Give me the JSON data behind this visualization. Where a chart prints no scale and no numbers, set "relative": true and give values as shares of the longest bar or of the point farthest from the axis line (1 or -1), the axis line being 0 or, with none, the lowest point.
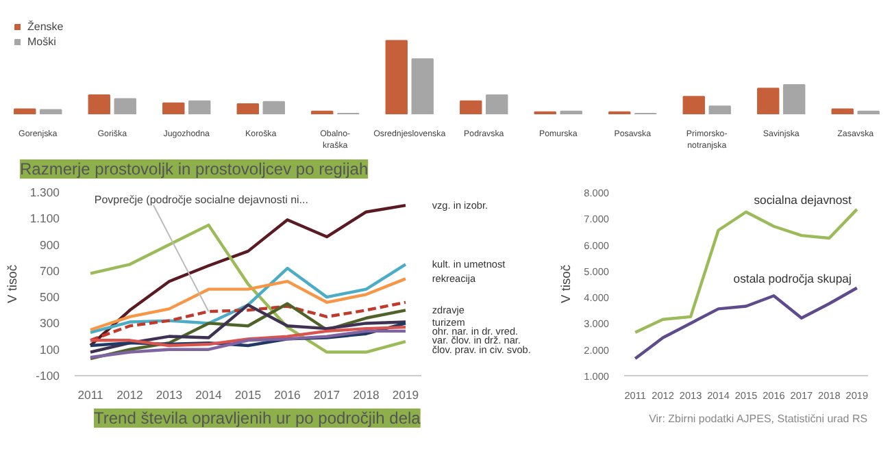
{
  "chart_data": [
    {
      "type": "bar",
      "title": "Razmerje prostovoljk in prostovoljcev po regijah",
      "relative": true,
      "legend": "top left",
      "categories": [
        "Gorenjska",
        "Goriška",
        "Jugozhodna",
        "Koroška",
        "Obalno-kraška",
        "Osrednjeslovenska",
        "Podravska",
        "Pomurska",
        "Posavska",
        "Primorsko-notranjska",
        "Savinjska",
        "Zasavska"
      ],
      "series": [
        {
          "name": "Ženske",
          "color": "#c5603a",
          "values": [
            0.07,
            0.26,
            0.15,
            0.14,
            0.04,
            1,
            0.18,
            0.03,
            0.03,
            0.24,
            0.35,
            0.07
          ]
        },
        {
          "name": "Moški",
          "color": "#a6a6a6",
          "values": [
            0.06,
            0.21,
            0.18,
            0.17,
            0.01,
            0.75,
            0.26,
            0.04,
            0.01,
            0.11,
            0.4,
            0.04
          ]
        }
      ]
    },
    {
      "type": "line",
      "title": "Trend števila opravljenih ur po področjih dela",
      "ylabel": "V tisoč",
      "x": [
        2011,
        2012,
        2013,
        2014,
        2015,
        2016,
        2017,
        2018,
        2019
      ],
      "xticks": [
        2011,
        2012,
        2013,
        2014,
        2015,
        2016,
        2017,
        2018,
        2019
      ],
      "xlim": [
        2010.6,
        2019.4
      ],
      "ylim": [
        -100,
        1300
      ],
      "yticks": [
        {
          "value": -100,
          "label": "-100"
        },
        {
          "value": 100,
          "label": "100"
        },
        {
          "value": 300,
          "label": "300"
        },
        {
          "value": 500,
          "label": "500"
        },
        {
          "value": 700,
          "label": "700"
        },
        {
          "value": 900,
          "label": "900"
        },
        {
          "value": 1100,
          "label": "1.100"
        },
        {
          "value": 1300,
          "label": "1.300"
        }
      ],
      "annotations": [
        {
          "text": "Povprečje (področje socialne dejavnosti ni...",
          "x": 2014,
          "y": 390
        }
      ],
      "series": [
        {
          "name": "vzg. in izobr.",
          "color": "#5a1a22",
          "values": [
            130,
            400,
            620,
            740,
            850,
            1090,
            960,
            1150,
            1200
          ]
        },
        {
          "name": "člov. prav. in civ. svob.",
          "color": "#9bbb59",
          "values": [
            680,
            750,
            900,
            1050,
            600,
            270,
            80,
            80,
            160
          ]
        },
        {
          "name": "kult. in umetnost",
          "color": "#4bacc6",
          "values": [
            230,
            310,
            320,
            300,
            440,
            720,
            500,
            560,
            750
          ]
        },
        {
          "name": "rekreacija",
          "color": "#f79646",
          "values": [
            250,
            350,
            410,
            560,
            560,
            620,
            460,
            520,
            640
          ]
        },
        {
          "color": "#c0392b",
          "line_style": "dashed",
          "values": [
            170,
            280,
            320,
            390,
            400,
            430,
            350,
            400,
            460
          ]
        },
        {
          "name": "zdravje",
          "color": "#4f6228",
          "values": [
            30,
            100,
            150,
            300,
            280,
            450,
            250,
            340,
            400
          ]
        },
        {
          "name": "turizem",
          "color": "#3f3151",
          "values": [
            80,
            150,
            200,
            190,
            440,
            280,
            260,
            300,
            310
          ]
        },
        {
          "color": "#1f3864",
          "values": [
            130,
            150,
            140,
            150,
            130,
            180,
            190,
            220,
            300
          ]
        },
        {
          "name": "ohr. nar. in dr. vred.",
          "color": "#d9534f",
          "values": [
            170,
            170,
            130,
            140,
            180,
            200,
            240,
            260,
            270
          ]
        },
        {
          "name": "var. člov. in drž. nar.",
          "color": "#8064a2",
          "values": [
            40,
            80,
            100,
            100,
            170,
            180,
            200,
            240,
            240
          ]
        }
      ]
    },
    {
      "type": "line",
      "ylabel": "V tisoč",
      "x": [
        2011,
        2012,
        2013,
        2014,
        2015,
        2016,
        2017,
        2018,
        2019
      ],
      "xticks": [
        2011,
        2012,
        2013,
        2014,
        2015,
        2016,
        2017,
        2018,
        2019
      ],
      "xlim": [
        2010.6,
        2019.4
      ],
      "ylim": [
        1000,
        8000
      ],
      "yticks": [
        {
          "value": 1000,
          "label": "1.000"
        },
        {
          "value": 2000,
          "label": "2.000"
        },
        {
          "value": 3000,
          "label": "3.000"
        },
        {
          "value": 4000,
          "label": "4.000"
        },
        {
          "value": 5000,
          "label": "5.000"
        },
        {
          "value": 6000,
          "label": "6.000"
        },
        {
          "value": 7000,
          "label": "7.000"
        },
        {
          "value": 8000,
          "label": "8.000"
        }
      ],
      "annotations": [
        "Vir: Zbirni podatki AJPES, Statistični urad RS"
      ],
      "series": [
        {
          "name": "socialna dejavnost",
          "color": "#9bbb59",
          "values": [
            2650,
            3150,
            3250,
            6550,
            7250,
            6700,
            6350,
            6250,
            7350
          ]
        },
        {
          "name": "ostala področja skupaj",
          "color": "#5f4b8b",
          "values": [
            1650,
            2450,
            3000,
            3550,
            3650,
            4050,
            3200,
            3750,
            4350
          ]
        }
      ]
    }
  ]
}
